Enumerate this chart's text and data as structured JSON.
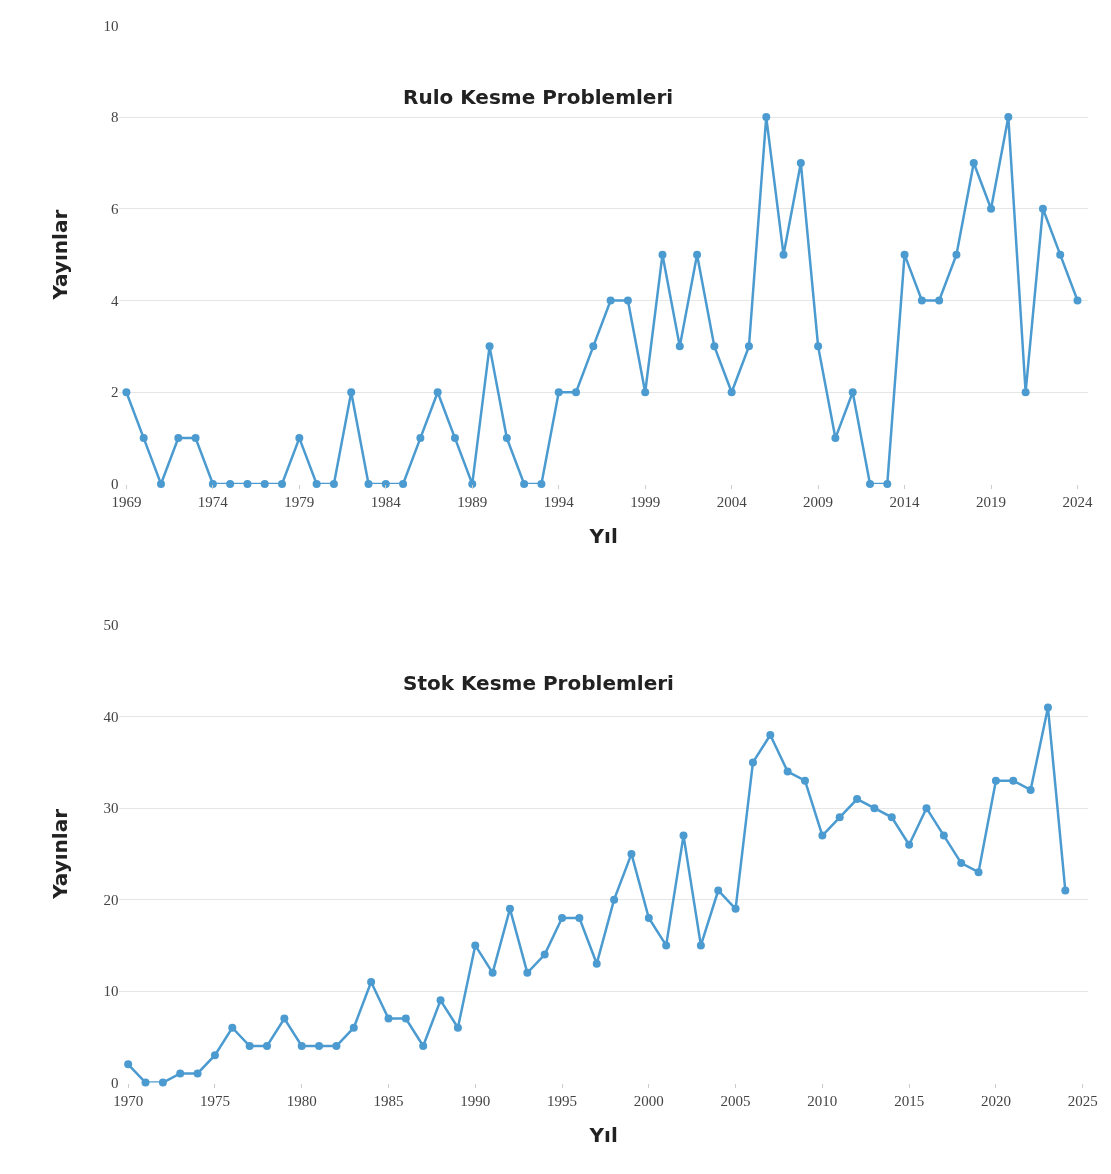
{
  "chart_data": [
    {
      "type": "line",
      "title": "Rulo Kesme Problemleri",
      "xlabel": "Yıl",
      "ylabel": "Yayınlar",
      "x": [
        1969,
        1970,
        1971,
        1972,
        1973,
        1974,
        1975,
        1976,
        1977,
        1978,
        1979,
        1980,
        1981,
        1982,
        1983,
        1984,
        1985,
        1986,
        1987,
        1988,
        1989,
        1990,
        1991,
        1992,
        1993,
        1994,
        1995,
        1996,
        1997,
        1998,
        1999,
        2000,
        2001,
        2002,
        2003,
        2004,
        2005,
        2006,
        2007,
        2008,
        2009,
        2010,
        2011,
        2012,
        2013,
        2014,
        2015,
        2016,
        2017,
        2018,
        2019,
        2020,
        2021,
        2022,
        2023,
        2024
      ],
      "series": [
        {
          "color": "#4b9bd0",
          "values": [
            2,
            1,
            0,
            1,
            1,
            0,
            0,
            0,
            0,
            0,
            1,
            0,
            0,
            2,
            0,
            0,
            0,
            1,
            2,
            1,
            0,
            3,
            1,
            0,
            0,
            2,
            2,
            3,
            4,
            4,
            2,
            5,
            3,
            5,
            3,
            2,
            3,
            8,
            5,
            7,
            3,
            1,
            2,
            0,
            0,
            5,
            4,
            4,
            5,
            7,
            6,
            8,
            2,
            6,
            5,
            4
          ]
        }
      ],
      "xlim": [
        1968.6,
        2024.6
      ],
      "xticks": [
        1969,
        1974,
        1979,
        1984,
        1989,
        1994,
        1999,
        2004,
        2009,
        2014,
        2019,
        2024
      ],
      "ylim": [
        0,
        10
      ],
      "yticks": [
        0,
        2,
        4,
        6,
        8,
        10
      ],
      "grid": "y",
      "marker": "circle",
      "line_style": "solid"
    },
    {
      "type": "line",
      "title": "Stok Kesme Problemleri",
      "xlabel": "Yıl",
      "ylabel": "Yayınlar",
      "x": [
        1970,
        1971,
        1972,
        1973,
        1974,
        1975,
        1976,
        1977,
        1978,
        1979,
        1980,
        1981,
        1982,
        1983,
        1984,
        1985,
        1986,
        1987,
        1988,
        1989,
        1990,
        1991,
        1992,
        1993,
        1994,
        1995,
        1996,
        1997,
        1998,
        1999,
        2000,
        2001,
        2002,
        2003,
        2004,
        2005,
        2006,
        2007,
        2008,
        2009,
        2010,
        2011,
        2012,
        2013,
        2014,
        2015,
        2016,
        2017,
        2018,
        2019,
        2020,
        2021,
        2022,
        2023,
        2024
      ],
      "series": [
        {
          "color": "#4b9bd0",
          "values": [
            2,
            0,
            0,
            1,
            1,
            3,
            6,
            4,
            4,
            7,
            4,
            4,
            4,
            6,
            11,
            7,
            7,
            4,
            9,
            6,
            15,
            12,
            19,
            12,
            14,
            18,
            18,
            13,
            20,
            25,
            18,
            15,
            27,
            15,
            21,
            19,
            35,
            38,
            34,
            33,
            27,
            29,
            31,
            30,
            29,
            26,
            30,
            27,
            24,
            23,
            33,
            33,
            32,
            41,
            21
          ]
        }
      ],
      "xlim": [
        1969.5,
        2025.3
      ],
      "xticks": [
        1970,
        1975,
        1980,
        1985,
        1990,
        1995,
        2000,
        2005,
        2010,
        2015,
        2020,
        2025
      ],
      "ylim": [
        0,
        50
      ],
      "yticks": [
        0,
        10,
        20,
        30,
        40,
        50
      ],
      "grid": "y",
      "marker": "circle",
      "line_style": "solid"
    }
  ]
}
